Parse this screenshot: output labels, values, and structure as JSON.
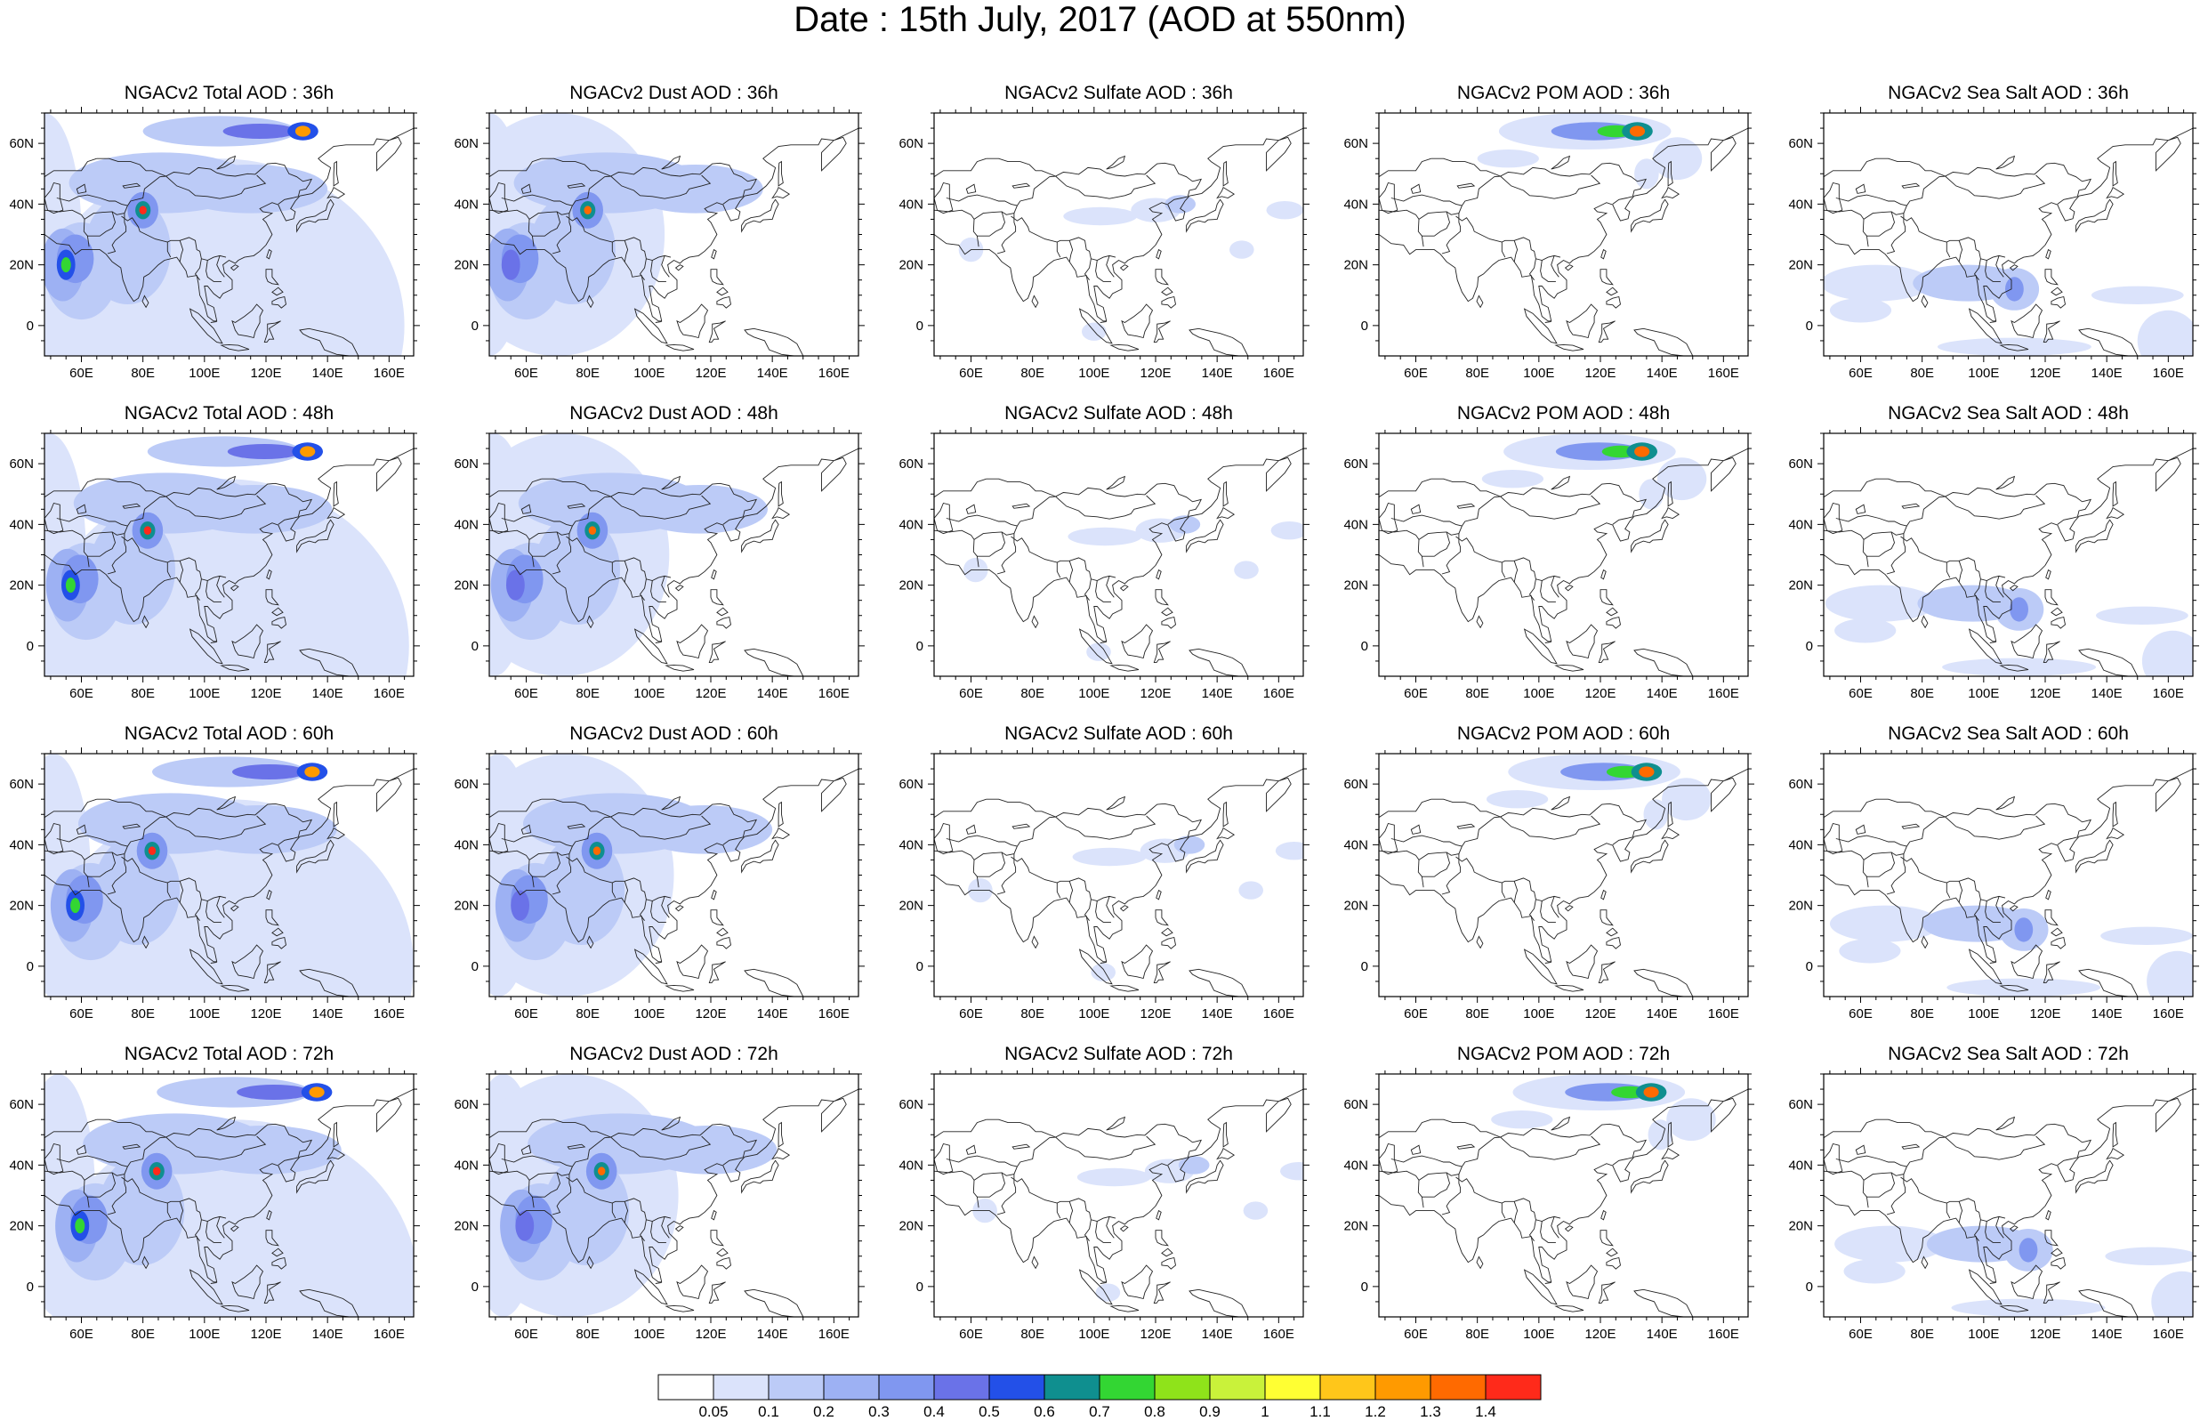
{
  "title": "Date : 15th July, 2017 (AOD at 550nm)",
  "panels": [
    [
      "NGACv2 Total AOD : 36h",
      "NGACv2 Dust AOD : 36h",
      "NGACv2 Sulfate AOD : 36h",
      "NGACv2 POM AOD : 36h",
      "NGACv2 Sea Salt AOD : 36h"
    ],
    [
      "NGACv2 Total AOD : 48h",
      "NGACv2 Dust AOD : 48h",
      "NGACv2 Sulfate AOD : 48h",
      "NGACv2 POM AOD : 48h",
      "NGACv2 Sea Salt AOD : 48h"
    ],
    [
      "NGACv2 Total AOD : 60h",
      "NGACv2 Dust AOD : 60h",
      "NGACv2 Sulfate AOD : 60h",
      "NGACv2 POM AOD : 60h",
      "NGACv2 Sea Salt AOD : 60h"
    ],
    [
      "NGACv2 Total AOD : 72h",
      "NGACv2 Dust AOD : 72h",
      "NGACv2 Sulfate AOD : 72h",
      "NGACv2 POM AOD : 72h",
      "NGACv2 Sea Salt  AOD : 72h"
    ]
  ],
  "x_ticks": [
    "60E",
    "80E",
    "100E",
    "120E",
    "140E",
    "160E"
  ],
  "x_tick_values": [
    60,
    80,
    100,
    120,
    140,
    160
  ],
  "y_ticks": [
    "60N",
    "40N",
    "20N",
    "0"
  ],
  "y_tick_values": [
    60,
    40,
    20,
    0
  ],
  "map_extent": {
    "lon": [
      48,
      168
    ],
    "lat": [
      -10,
      70
    ]
  },
  "colorbar": {
    "labels": [
      "0.05",
      "0.1",
      "0.2",
      "0.3",
      "0.4",
      "0.5",
      "0.6",
      "0.7",
      "0.8",
      "0.9",
      "1",
      "1.1",
      "1.2",
      "1.3",
      "1.4"
    ],
    "colors": [
      "#ffffff",
      "#dbe3fb",
      "#bccbf7",
      "#9db1f3",
      "#8097f0",
      "#6a72e8",
      "#2350e8",
      "#0f8f8f",
      "#33d633",
      "#8fe31a",
      "#c9f23a",
      "#ffff33",
      "#ffc61a",
      "#ff9a00",
      "#ff6a00",
      "#ff2a1a"
    ]
  }
}
